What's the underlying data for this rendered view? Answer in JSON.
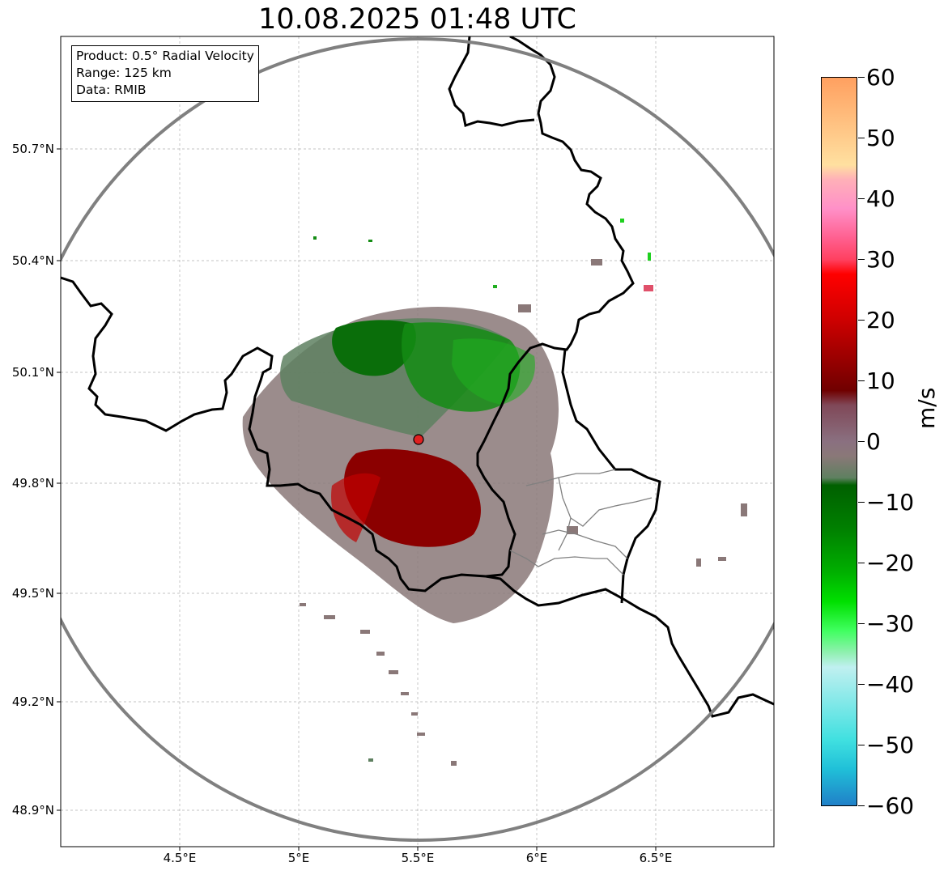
{
  "title": "10.08.2025 01:48 UTC",
  "info_box": {
    "product": "Product: 0.5° Radial Velocity",
    "range": "Range: 125 km",
    "data": "Data: RMIB"
  },
  "axes": {
    "lat_ticks": [
      "50.7°N",
      "50.4°N",
      "50.1°N",
      "49.8°N",
      "49.5°N",
      "49.2°N",
      "48.9°N"
    ],
    "lon_ticks": [
      "4.5°E",
      "5°E",
      "5.5°E",
      "6°E",
      "6.5°E"
    ]
  },
  "colorbar": {
    "unit": "m/s",
    "ticks": [
      "60",
      "50",
      "40",
      "30",
      "20",
      "10",
      "0",
      "−10",
      "−20",
      "−30",
      "−40",
      "−50",
      "−60"
    ],
    "min": -60,
    "max": 60
  },
  "colors": {
    "range_ring": "#808080",
    "border": "#000000",
    "radar_site": "#e02020",
    "grid": "#b0b0b0"
  },
  "radar_site": {
    "lat": 49.91,
    "lon": 5.5
  }
}
